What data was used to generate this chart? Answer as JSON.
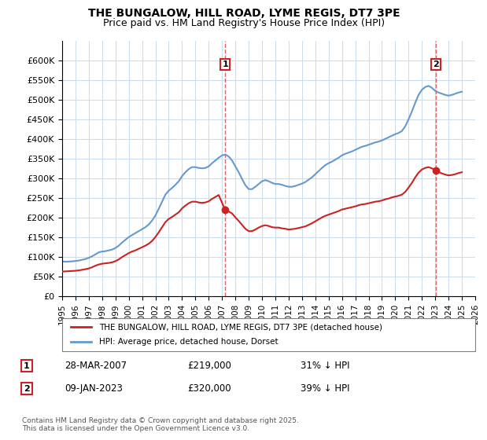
{
  "title": "THE BUNGALOW, HILL ROAD, LYME REGIS, DT7 3PE",
  "subtitle": "Price paid vs. HM Land Registry's House Price Index (HPI)",
  "ylim": [
    0,
    650000
  ],
  "yticks": [
    0,
    50000,
    100000,
    150000,
    200000,
    250000,
    300000,
    350000,
    400000,
    450000,
    500000,
    550000,
    600000
  ],
  "ylabel_format": "£{0}K",
  "background_color": "#ffffff",
  "plot_bg_color": "#ffffff",
  "grid_color": "#ccddee",
  "hpi_color": "#6699cc",
  "price_color": "#cc2222",
  "transaction1": {
    "date": "28-MAR-2007",
    "price": 219000,
    "label": "1",
    "pct": "31% ↓ HPI"
  },
  "transaction2": {
    "date": "09-JAN-2023",
    "price": 320000,
    "label": "2",
    "pct": "39% ↓ HPI"
  },
  "legend_property": "THE BUNGALOW, HILL ROAD, LYME REGIS, DT7 3PE (detached house)",
  "legend_hpi": "HPI: Average price, detached house, Dorset",
  "footer": "Contains HM Land Registry data © Crown copyright and database right 2025.\nThis data is licensed under the Open Government Licence v3.0.",
  "hpi_data": {
    "years": [
      1995,
      1995.25,
      1995.5,
      1995.75,
      1996,
      1996.25,
      1996.5,
      1996.75,
      1997,
      1997.25,
      1997.5,
      1997.75,
      1998,
      1998.25,
      1998.5,
      1998.75,
      1999,
      1999.25,
      1999.5,
      1999.75,
      2000,
      2000.25,
      2000.5,
      2000.75,
      2001,
      2001.25,
      2001.5,
      2001.75,
      2002,
      2002.25,
      2002.5,
      2002.75,
      2003,
      2003.25,
      2003.5,
      2003.75,
      2004,
      2004.25,
      2004.5,
      2004.75,
      2005,
      2005.25,
      2005.5,
      2005.75,
      2006,
      2006.25,
      2006.5,
      2006.75,
      2007,
      2007.25,
      2007.5,
      2007.75,
      2008,
      2008.25,
      2008.5,
      2008.75,
      2009,
      2009.25,
      2009.5,
      2009.75,
      2010,
      2010.25,
      2010.5,
      2010.75,
      2011,
      2011.25,
      2011.5,
      2011.75,
      2012,
      2012.25,
      2012.5,
      2012.75,
      2013,
      2013.25,
      2013.5,
      2013.75,
      2014,
      2014.25,
      2014.5,
      2014.75,
      2015,
      2015.25,
      2015.5,
      2015.75,
      2016,
      2016.25,
      2016.5,
      2016.75,
      2017,
      2017.25,
      2017.5,
      2017.75,
      2018,
      2018.25,
      2018.5,
      2018.75,
      2019,
      2019.25,
      2019.5,
      2019.75,
      2020,
      2020.25,
      2020.5,
      2020.75,
      2021,
      2021.25,
      2021.5,
      2021.75,
      2022,
      2022.25,
      2022.5,
      2022.75,
      2023,
      2023.25,
      2023.5,
      2023.75,
      2024,
      2024.25,
      2024.5,
      2024.75,
      2025
    ],
    "values": [
      88000,
      87000,
      87500,
      88000,
      89000,
      90000,
      92000,
      94000,
      97000,
      101000,
      106000,
      111000,
      113000,
      114000,
      116000,
      118000,
      122000,
      128000,
      136000,
      143000,
      150000,
      155000,
      160000,
      165000,
      170000,
      175000,
      182000,
      192000,
      205000,
      222000,
      240000,
      258000,
      268000,
      275000,
      283000,
      292000,
      305000,
      315000,
      323000,
      328000,
      328000,
      326000,
      325000,
      326000,
      330000,
      338000,
      345000,
      352000,
      358000,
      360000,
      355000,
      345000,
      330000,
      315000,
      298000,
      282000,
      272000,
      272000,
      278000,
      285000,
      292000,
      295000,
      292000,
      288000,
      285000,
      285000,
      283000,
      280000,
      278000,
      278000,
      280000,
      283000,
      286000,
      290000,
      296000,
      302000,
      310000,
      318000,
      326000,
      333000,
      338000,
      342000,
      347000,
      352000,
      358000,
      362000,
      365000,
      368000,
      372000,
      376000,
      380000,
      382000,
      385000,
      388000,
      391000,
      393000,
      396000,
      400000,
      404000,
      408000,
      412000,
      415000,
      420000,
      432000,
      450000,
      470000,
      492000,
      512000,
      525000,
      532000,
      535000,
      530000,
      522000,
      518000,
      515000,
      512000,
      510000,
      512000,
      515000,
      518000,
      520000
    ]
  },
  "price_data": {
    "years": [
      1995,
      1995.25,
      1995.5,
      1995.75,
      1996,
      1996.25,
      1996.5,
      1996.75,
      1997,
      1997.25,
      1997.5,
      1997.75,
      1998,
      1998.25,
      1998.5,
      1998.75,
      1999,
      1999.25,
      1999.5,
      1999.75,
      2000,
      2000.25,
      2000.5,
      2000.75,
      2001,
      2001.25,
      2001.5,
      2001.75,
      2002,
      2002.25,
      2002.5,
      2002.75,
      2003,
      2003.25,
      2003.5,
      2003.75,
      2004,
      2004.25,
      2004.5,
      2004.75,
      2005,
      2005.25,
      2005.5,
      2005.75,
      2006,
      2006.25,
      2006.5,
      2006.75,
      2007.23,
      2007.5,
      2007.75,
      2008,
      2008.25,
      2008.5,
      2008.75,
      2009,
      2009.25,
      2009.5,
      2009.75,
      2010,
      2010.25,
      2010.5,
      2010.75,
      2011,
      2011.25,
      2011.5,
      2011.75,
      2012,
      2012.25,
      2012.5,
      2012.75,
      2013,
      2013.25,
      2013.5,
      2013.75,
      2014,
      2014.25,
      2014.5,
      2014.75,
      2015,
      2015.25,
      2015.5,
      2015.75,
      2016,
      2016.25,
      2016.5,
      2016.75,
      2017,
      2017.25,
      2017.5,
      2017.75,
      2018,
      2018.25,
      2018.5,
      2018.75,
      2019,
      2019.25,
      2019.5,
      2019.75,
      2020,
      2020.25,
      2020.5,
      2020.75,
      2021,
      2021.25,
      2021.5,
      2021.75,
      2022,
      2022.25,
      2022.5,
      2022.75,
      2023.03,
      2023.25,
      2023.5,
      2023.75,
      2024,
      2024.25,
      2024.5,
      2024.75,
      2025
    ],
    "values": [
      62000,
      62500,
      63000,
      63500,
      64000,
      65000,
      66500,
      68000,
      70000,
      73000,
      77000,
      80000,
      82000,
      83000,
      84000,
      85500,
      88500,
      93000,
      99000,
      104000,
      109000,
      113000,
      116000,
      120000,
      124000,
      128000,
      133000,
      140000,
      150000,
      162000,
      175000,
      188000,
      196000,
      201000,
      207000,
      213000,
      223000,
      230000,
      236000,
      240000,
      240000,
      238000,
      237000,
      238000,
      241000,
      247000,
      252000,
      257000,
      219000,
      215000,
      210000,
      200000,
      191000,
      181000,
      171000,
      165000,
      165000,
      169000,
      174000,
      178000,
      180000,
      178000,
      175000,
      174000,
      174000,
      172000,
      171000,
      169000,
      170000,
      171000,
      173000,
      175000,
      177000,
      181000,
      185000,
      190000,
      195000,
      200000,
      204000,
      207000,
      210000,
      213000,
      216000,
      220000,
      222000,
      224000,
      226000,
      228000,
      231000,
      233000,
      234000,
      236000,
      238000,
      240000,
      241000,
      243000,
      246000,
      248000,
      251000,
      253000,
      255000,
      258000,
      265000,
      276000,
      288000,
      302000,
      314000,
      322000,
      326000,
      328000,
      325000,
      320000,
      316000,
      312000,
      309000,
      307000,
      308000,
      310000,
      313000,
      315000
    ]
  },
  "trans1_x": 2007.23,
  "trans1_y": 219000,
  "trans2_x": 2023.03,
  "trans2_y": 320000,
  "xmin": 1995,
  "xmax": 2026
}
